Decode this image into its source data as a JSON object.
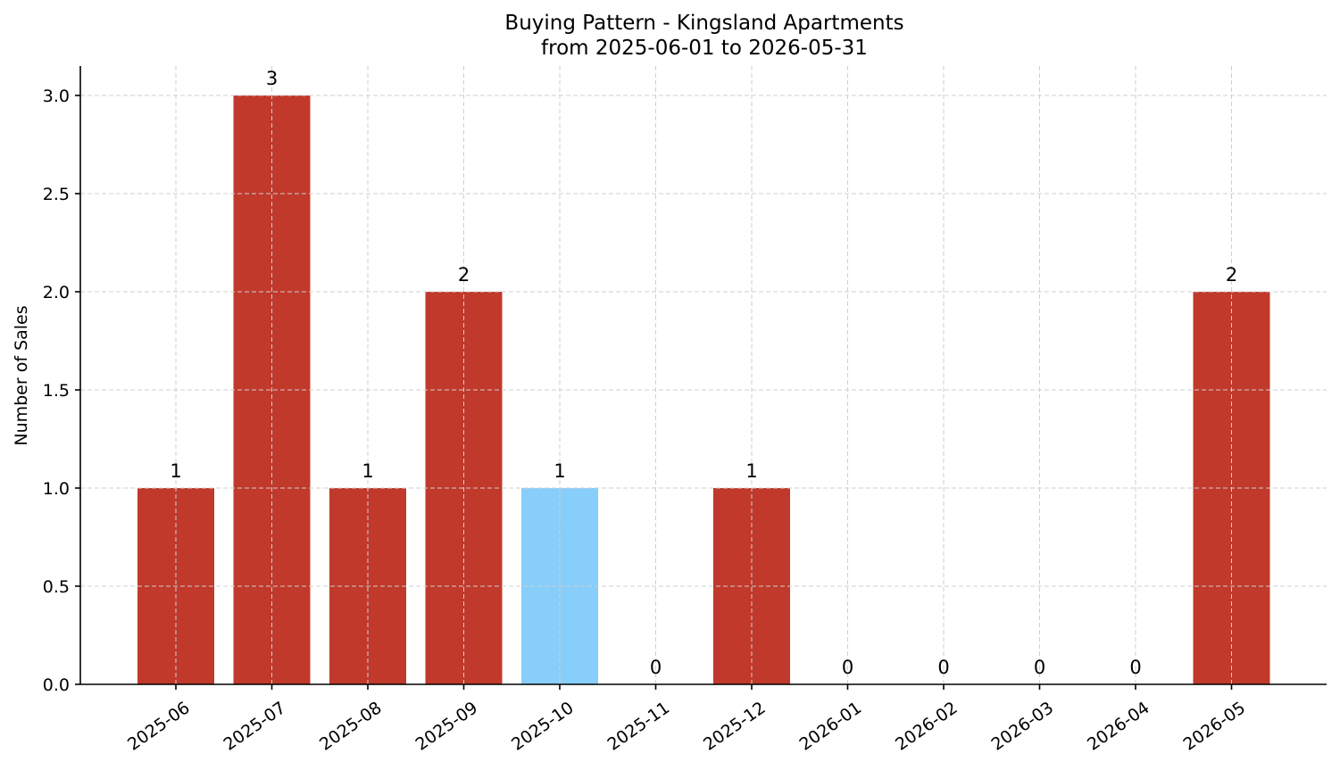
{
  "chart_data": {
    "type": "bar",
    "title": "Buying Pattern - Kingsland Apartments",
    "subtitle": "from 2025-06-01 to 2026-05-31",
    "xlabel": "",
    "ylabel": "Number of Sales",
    "categories": [
      "2025-06",
      "2025-07",
      "2025-08",
      "2025-09",
      "2025-10",
      "2025-11",
      "2025-12",
      "2026-01",
      "2026-02",
      "2026-03",
      "2026-04",
      "2026-05"
    ],
    "values": [
      1,
      3,
      1,
      2,
      1,
      0,
      1,
      0,
      0,
      0,
      0,
      2
    ],
    "data_labels": [
      "1",
      "3",
      "1",
      "2",
      "1",
      "0",
      "1",
      "0",
      "0",
      "0",
      "0",
      "2"
    ],
    "highlight_index": 4,
    "ylim": [
      0,
      3.15
    ],
    "yticks": [
      0.0,
      0.5,
      1.0,
      1.5,
      2.0,
      2.5,
      3.0
    ],
    "ytick_labels": [
      "0.0",
      "0.5",
      "1.0",
      "1.5",
      "2.0",
      "2.5",
      "3.0"
    ],
    "grid": true,
    "colors": {
      "bar": "#c0392b",
      "highlight": "#87cefa",
      "grid": "#cfcfcf",
      "axis": "#000000"
    }
  }
}
